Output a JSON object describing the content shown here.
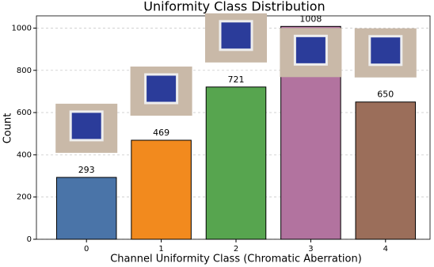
{
  "chart_data": {
    "type": "bar",
    "title": "Uniformity Class Distribution",
    "x_label": "Channel Uniformity Class (Chromatic Aberration)",
    "y_label": "Count",
    "categories": [
      "0",
      "1",
      "2",
      "3",
      "4"
    ],
    "values": [
      293,
      469,
      721,
      1008,
      650
    ],
    "colors": [
      "#4a74a8",
      "#f28a1e",
      "#57a54f",
      "#b2739f",
      "#9b6e5a"
    ],
    "ylim": [
      0,
      1058
    ],
    "yticks": [
      0,
      200,
      400,
      600,
      800,
      1000
    ],
    "grid": true
  }
}
